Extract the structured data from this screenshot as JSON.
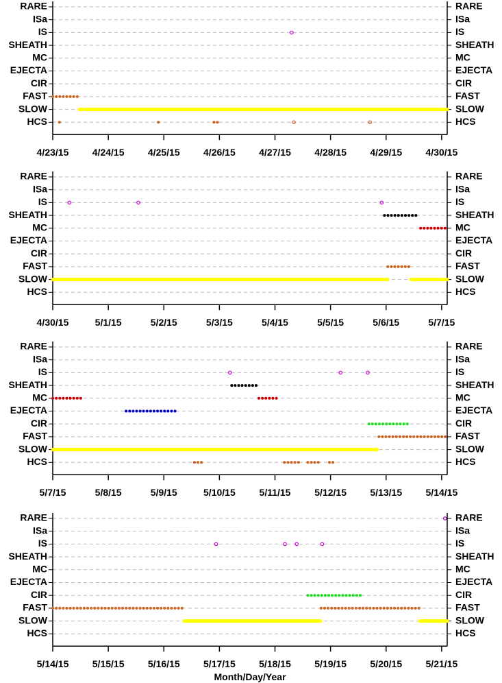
{
  "chart_data": [
    {
      "type": "timeline",
      "categories": [
        "RARE",
        "ISa",
        "IS",
        "SHEATH",
        "MC",
        "EJECTA",
        "CIR",
        "FAST",
        "SLOW",
        "HCS"
      ],
      "colors": [
        "#9900cc",
        "#cc00cc",
        "#cc00cc",
        "#000000",
        "#cc0000",
        "#0000cc",
        "#22dd22",
        "#cc6622",
        "#ffff00",
        "#cc6622"
      ],
      "intervals": [
        [],
        [],
        [
          4.3
        ],
        [],
        [],
        [],
        [],
        [
          [
            0,
            0.48
          ]
        ],
        [
          [
            0.48,
            7.1
          ]
        ],
        [
          [
            0.12,
            0.18
          ],
          [
            1.9,
            1.96
          ],
          [
            2.9,
            2.99
          ],
          4.34,
          5.71
        ]
      ],
      "xlim": [
        0,
        7.1
      ],
      "xticks": [
        {
          "value": 0,
          "label": "4/23/15"
        },
        {
          "value": 1,
          "label": "4/24/15"
        },
        {
          "value": 2,
          "label": "4/25/15"
        },
        {
          "value": 3,
          "label": "4/26/15"
        },
        {
          "value": 4,
          "label": "4/27/15"
        },
        {
          "value": 5,
          "label": "4/28/15"
        },
        {
          "value": 6,
          "label": "4/29/15"
        },
        {
          "value": 7,
          "label": "4/30/15"
        }
      ],
      "grid": true
    },
    {
      "type": "timeline",
      "categories": [
        "RARE",
        "ISa",
        "IS",
        "SHEATH",
        "MC",
        "EJECTA",
        "CIR",
        "FAST",
        "SLOW",
        "HCS"
      ],
      "colors": [
        "#9900cc",
        "#cc00cc",
        "#cc00cc",
        "#000000",
        "#cc0000",
        "#0000cc",
        "#22dd22",
        "#cc6622",
        "#ffff00",
        "#cc6622"
      ],
      "intervals": [
        [],
        [],
        [
          7.3,
          8.54,
          12.92
        ],
        [
          [
            12.97,
            13.59
          ]
        ],
        [
          [
            13.62,
            14.1
          ]
        ],
        [],
        [],
        [
          [
            13.03,
            13.45
          ]
        ],
        [
          [
            7,
            13.03
          ],
          [
            13.45,
            14.1
          ]
        ],
        []
      ],
      "xlim": [
        7,
        14.1
      ],
      "xticks": [
        {
          "value": 7,
          "label": "4/30/15"
        },
        {
          "value": 8,
          "label": "5/1/15"
        },
        {
          "value": 9,
          "label": "5/2/15"
        },
        {
          "value": 10,
          "label": "5/3/15"
        },
        {
          "value": 11,
          "label": "5/4/15"
        },
        {
          "value": 12,
          "label": "5/5/15"
        },
        {
          "value": 13,
          "label": "5/6/15"
        },
        {
          "value": 14,
          "label": "5/7/15"
        }
      ],
      "grid": true
    },
    {
      "type": "timeline",
      "categories": [
        "RARE",
        "ISa",
        "IS",
        "SHEATH",
        "MC",
        "EJECTA",
        "CIR",
        "FAST",
        "SLOW",
        "HCS"
      ],
      "colors": [
        "#9900cc",
        "#cc00cc",
        "#cc00cc",
        "#000000",
        "#cc0000",
        "#0000cc",
        "#22dd22",
        "#cc6622",
        "#ffff00",
        "#cc6622"
      ],
      "intervals": [
        [],
        [],
        [
          17.19,
          19.18,
          19.67
        ],
        [
          [
            17.22,
            17.71
          ]
        ],
        [
          [
            14,
            14.53
          ],
          [
            17.71,
            18.08
          ]
        ],
        [
          [
            15.32,
            16.23
          ]
        ],
        [
          [
            19.69,
            20.4
          ]
        ],
        [
          [
            19.87,
            21.1
          ]
        ],
        [
          [
            14,
            19.84
          ]
        ],
        [
          [
            16.55,
            16.71
          ],
          [
            18.17,
            18.47
          ],
          [
            18.59,
            18.83
          ],
          [
            18.98,
            19.1
          ]
        ]
      ],
      "xlim": [
        14,
        21.1
      ],
      "xticks": [
        {
          "value": 14,
          "label": "5/7/15"
        },
        {
          "value": 15,
          "label": "5/8/15"
        },
        {
          "value": 16,
          "label": "5/9/15"
        },
        {
          "value": 17,
          "label": "5/10/15"
        },
        {
          "value": 18,
          "label": "5/11/15"
        },
        {
          "value": 19,
          "label": "5/12/15"
        },
        {
          "value": 20,
          "label": "5/13/15"
        },
        {
          "value": 21,
          "label": "5/14/15"
        }
      ],
      "grid": true
    },
    {
      "type": "timeline",
      "categories": [
        "RARE",
        "ISa",
        "IS",
        "SHEATH",
        "MC",
        "EJECTA",
        "CIR",
        "FAST",
        "SLOW",
        "HCS"
      ],
      "colors": [
        "#9900cc",
        "#cc00cc",
        "#cc00cc",
        "#000000",
        "#cc0000",
        "#0000cc",
        "#22dd22",
        "#cc6622",
        "#ffff00",
        "#cc6622"
      ],
      "intervals": [
        [
          28.06
        ],
        [],
        [
          23.94,
          25.18,
          25.39,
          25.85
        ],
        [],
        [],
        [],
        [
          [
            25.59,
            26.57
          ]
        ],
        [
          [
            21,
            23.37
          ],
          [
            25.83,
            27.61
          ]
        ],
        [
          [
            23.37,
            25.82
          ],
          [
            27.61,
            28.1
          ]
        ],
        []
      ],
      "xlim": [
        21,
        28.1
      ],
      "xticks": [
        {
          "value": 21,
          "label": "5/14/15"
        },
        {
          "value": 22,
          "label": "5/15/15"
        },
        {
          "value": 23,
          "label": "5/16/15"
        },
        {
          "value": 24,
          "label": "5/17/15"
        },
        {
          "value": 25,
          "label": "5/18/15"
        },
        {
          "value": 26,
          "label": "5/19/15"
        },
        {
          "value": 27,
          "label": "5/20/15"
        },
        {
          "value": 28,
          "label": "5/21/15"
        }
      ],
      "xlabel": "Month/Day/Year",
      "grid": true
    }
  ]
}
